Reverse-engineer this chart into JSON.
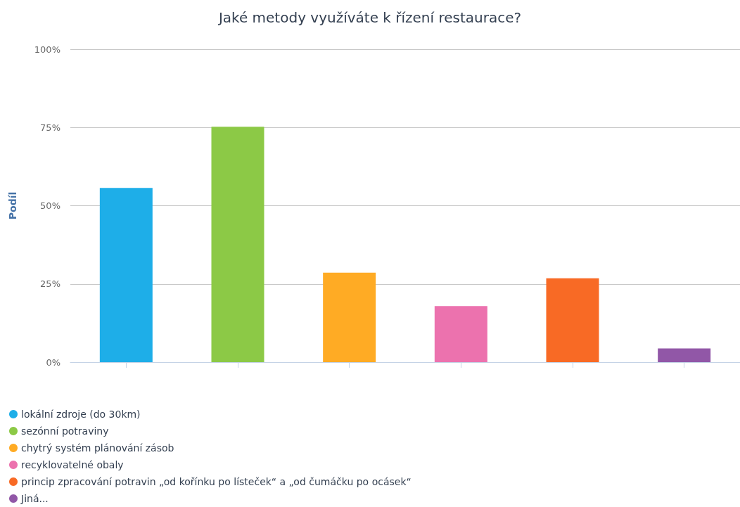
{
  "chart_data": {
    "type": "bar",
    "title": "Jaké metody využíváte k řízení restaurace?",
    "ylabel": "Podíl",
    "categories": [
      null,
      null,
      null,
      null,
      null,
      null
    ],
    "series": [
      {
        "name": "lokální zdroje (do 30km)",
        "color": "#1eaee8",
        "values": [
          55.7,
          null,
          null,
          null,
          null,
          null
        ]
      },
      {
        "name": "sezónní potraviny",
        "color": "#8cc946",
        "values": [
          null,
          75.2,
          null,
          null,
          null,
          null
        ]
      },
      {
        "name": "chytrý systém plánování zásob",
        "color": "#ffab24",
        "values": [
          null,
          null,
          28.6,
          null,
          null,
          null
        ]
      },
      {
        "name": "recyklovatelné obaly",
        "color": "#ec72ae",
        "values": [
          null,
          null,
          null,
          17.9,
          null,
          null
        ]
      },
      {
        "name": "princip zpracování potravin „od kořínku po lísteček“ a „od čumáčku po ocásek“",
        "color": "#f86a25",
        "values": [
          null,
          null,
          null,
          null,
          26.8,
          null
        ]
      },
      {
        "name": "Jiná...",
        "color": "#9157a7",
        "values": [
          null,
          null,
          null,
          null,
          null,
          4.4
        ]
      }
    ],
    "ylim": [
      0,
      100
    ],
    "yticks": [
      {
        "value": 0,
        "label": "0%"
      },
      {
        "value": 25,
        "label": "25%"
      },
      {
        "value": 50,
        "label": "50%"
      },
      {
        "value": 75,
        "label": "75%"
      },
      {
        "value": 100,
        "label": "100%"
      }
    ],
    "grid": "y",
    "legend": "bottom left"
  }
}
